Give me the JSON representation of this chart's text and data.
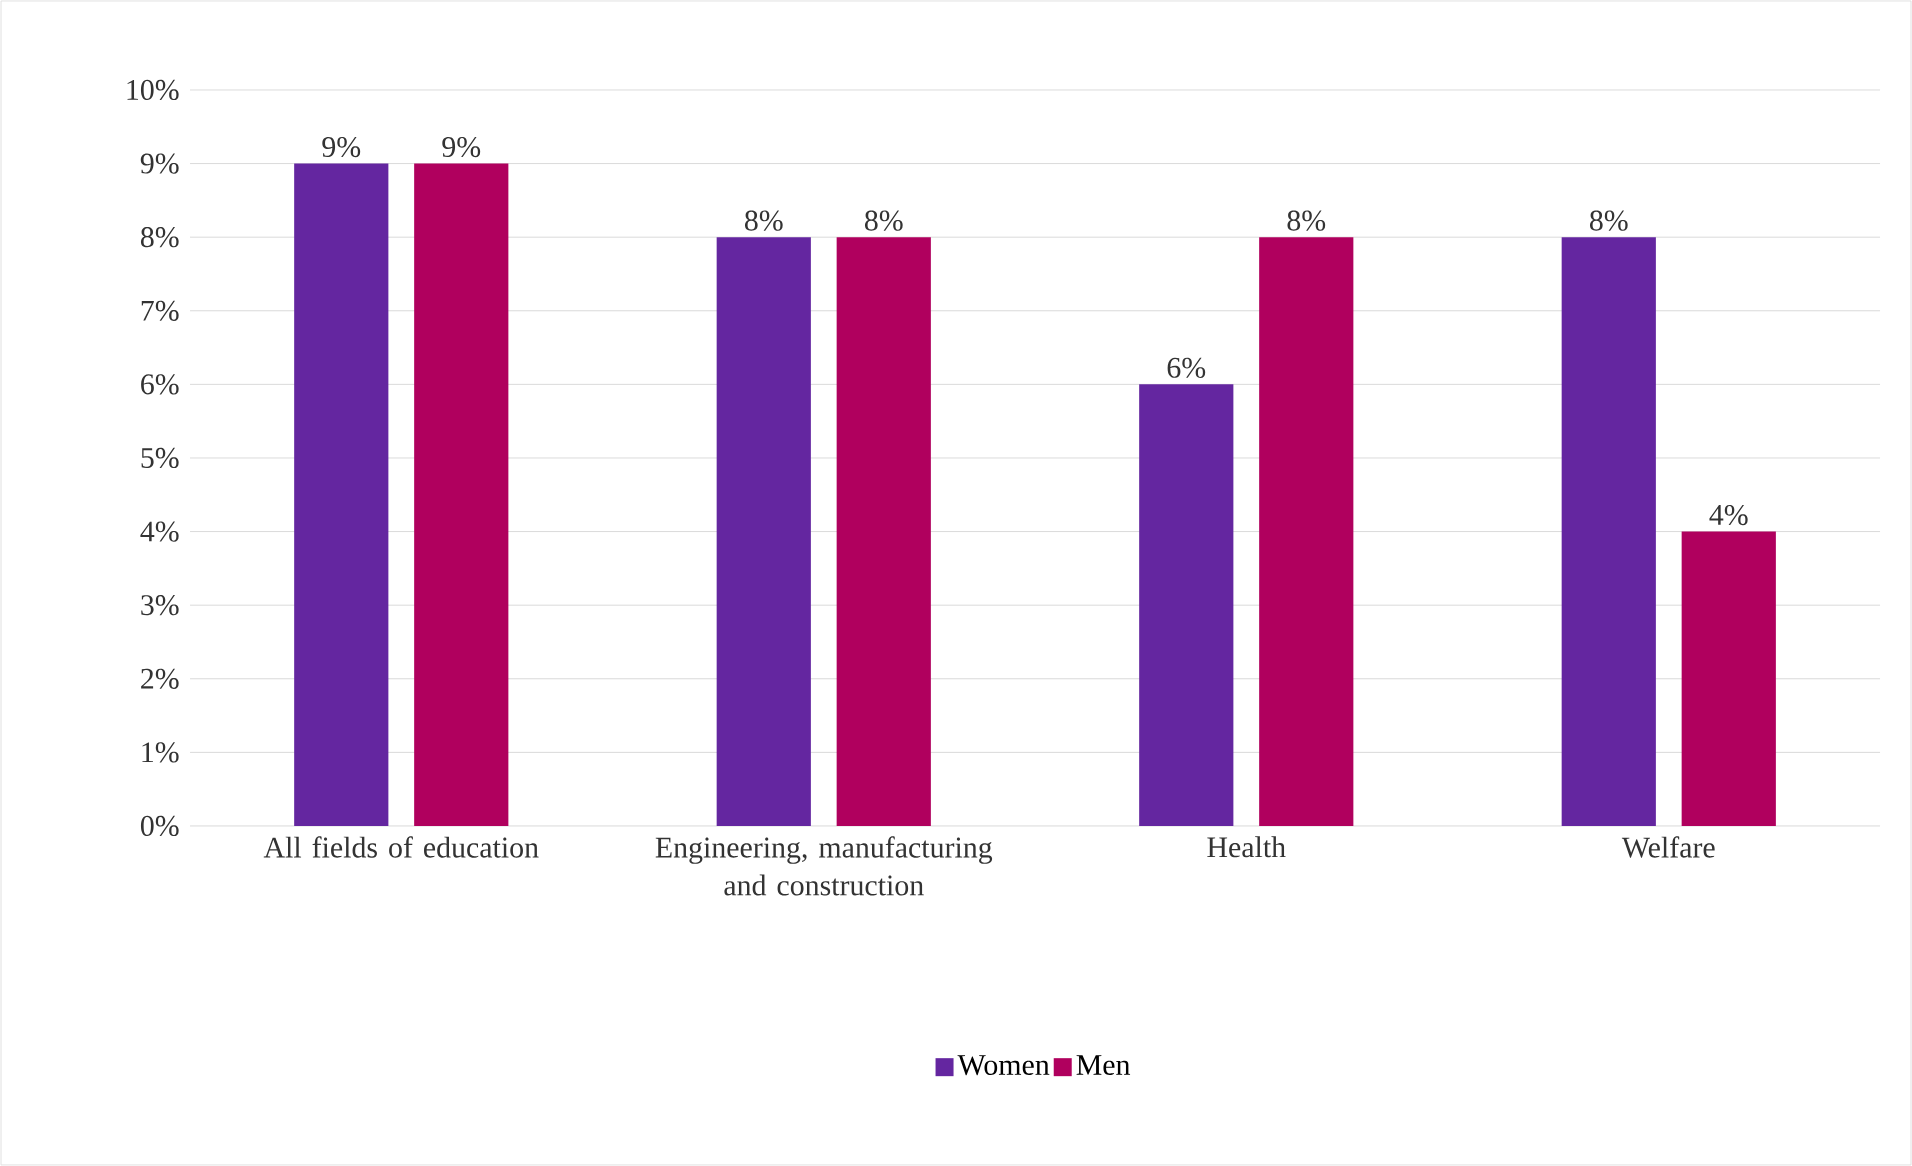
{
  "chart_data": {
    "type": "bar",
    "categories": [
      "All fields of education",
      "Engineering, manufacturing and construction",
      "Health",
      "Welfare"
    ],
    "series": [
      {
        "name": "Women",
        "color": "#6426a0",
        "values": [
          9,
          8,
          6,
          8
        ],
        "value_labels": [
          "9%",
          "8%",
          "6%",
          "8%"
        ]
      },
      {
        "name": "Men",
        "color": "#b0005e",
        "values": [
          9,
          8,
          8,
          4
        ],
        "value_labels": [
          "9%",
          "8%",
          "8%",
          "4%"
        ]
      }
    ],
    "ylim": [
      0,
      10
    ],
    "yticks": [
      {
        "value": 0,
        "label": "0%"
      },
      {
        "value": 1,
        "label": "1%"
      },
      {
        "value": 2,
        "label": "2%"
      },
      {
        "value": 3,
        "label": "3%"
      },
      {
        "value": 4,
        "label": "4%"
      },
      {
        "value": 5,
        "label": "5%"
      },
      {
        "value": 6,
        "label": "6%"
      },
      {
        "value": 7,
        "label": "7%"
      },
      {
        "value": 8,
        "label": "8%"
      },
      {
        "value": 9,
        "label": "9%"
      },
      {
        "value": 10,
        "label": "10%"
      }
    ],
    "grid": "y",
    "legend": "bottom"
  }
}
